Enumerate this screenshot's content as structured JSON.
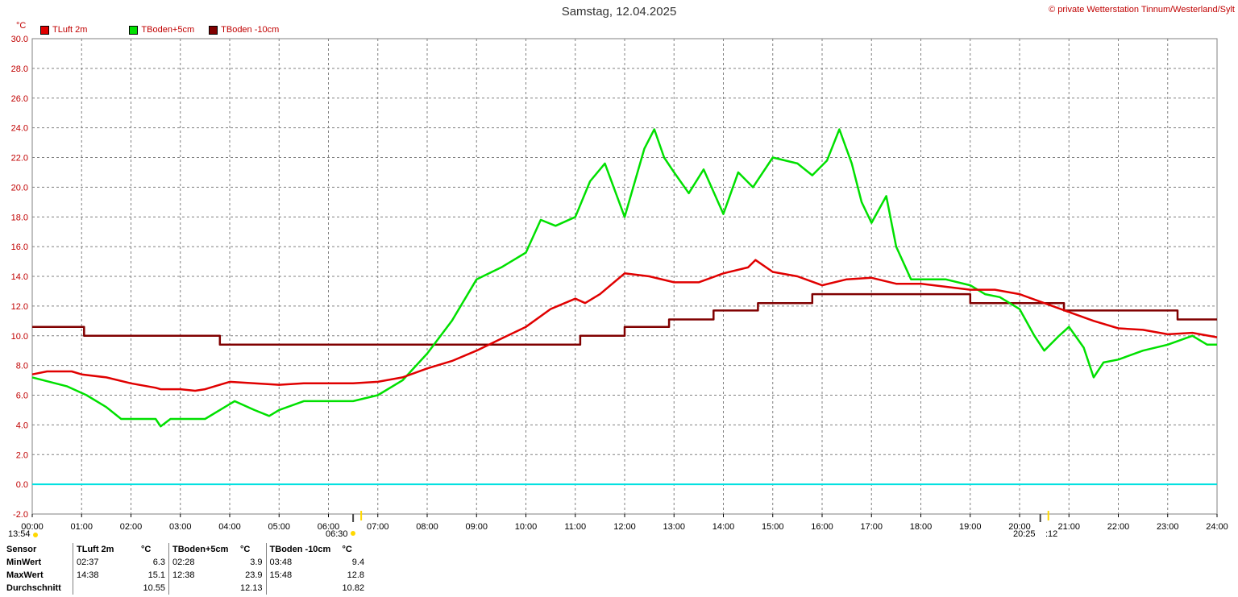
{
  "title": "Samstag, 12.04.2025",
  "copyright": "© private Wetterstation Tinnum/Westerland/Sylt",
  "unit_label": "°C",
  "sunrise_label": "06:30",
  "sunset_label": "20:25",
  "moonrise_label": "13:54",
  "moon_extra": ":12",
  "colors": {
    "tluft": "#e00000",
    "tboden5": "#00e000",
    "tboden10": "#800000",
    "zero": "#00e0e0"
  },
  "stats": {
    "headers": [
      "Sensor",
      "TLuft 2m",
      "°C",
      "TBoden+5cm",
      "°C",
      "TBoden -10cm",
      "°C"
    ],
    "rows": [
      {
        "label": "MinWert",
        "c1t": "02:37",
        "c1v": "6.3",
        "c2t": "02:28",
        "c2v": "3.9",
        "c3t": "03:48",
        "c3v": "9.4"
      },
      {
        "label": "MaxWert",
        "c1t": "14:38",
        "c1v": "15.1",
        "c2t": "12:38",
        "c2v": "23.9",
        "c3t": "15:48",
        "c3v": "12.8"
      },
      {
        "label": "Durchschnitt",
        "c1t": "",
        "c1v": "10.55",
        "c2t": "",
        "c2v": "12.13",
        "c3t": "",
        "c3v": "10.82"
      }
    ]
  },
  "chart_data": {
    "type": "line",
    "title": "Samstag, 12.04.2025",
    "xlabel": "",
    "ylabel": "°C",
    "xlim": [
      0,
      24
    ],
    "ylim": [
      -2,
      30
    ],
    "yticks": [
      "-2.0",
      "0.0",
      "2.0",
      "4.0",
      "6.0",
      "8.0",
      "10.0",
      "12.0",
      "14.0",
      "16.0",
      "18.0",
      "20.0",
      "22.0",
      "24.0",
      "26.0",
      "28.0",
      "30.0"
    ],
    "xticks": [
      "00:00",
      "01:00",
      "02:00",
      "03:00",
      "04:00",
      "05:00",
      "06:00",
      "07:00",
      "08:00",
      "09:00",
      "10:00",
      "11:00",
      "12:00",
      "13:00",
      "14:00",
      "15:00",
      "16:00",
      "17:00",
      "18:00",
      "19:00",
      "20:00",
      "21:00",
      "22:00",
      "23:00",
      "24:00"
    ],
    "grid": true,
    "legend": "top-left",
    "series": [
      {
        "name": "TLuft 2m",
        "color": "#e00000",
        "x": [
          0,
          0.3,
          0.8,
          1.0,
          1.5,
          2.0,
          2.5,
          2.6,
          3.0,
          3.3,
          3.5,
          3.8,
          4.0,
          4.5,
          5.0,
          5.5,
          6.0,
          6.5,
          7.0,
          7.5,
          8.0,
          8.5,
          9.0,
          9.5,
          10.0,
          10.5,
          11.0,
          11.2,
          11.5,
          12.0,
          12.5,
          13.0,
          13.5,
          14.0,
          14.5,
          14.65,
          15.0,
          15.5,
          16.0,
          16.5,
          17.0,
          17.5,
          18.0,
          18.5,
          19.0,
          19.5,
          20.0,
          20.5,
          21.0,
          21.5,
          22.0,
          22.5,
          23.0,
          23.5,
          24.0
        ],
        "y": [
          7.4,
          7.6,
          7.6,
          7.4,
          7.2,
          6.8,
          6.5,
          6.4,
          6.4,
          6.3,
          6.4,
          6.7,
          6.9,
          6.8,
          6.7,
          6.8,
          6.8,
          6.8,
          6.9,
          7.2,
          7.8,
          8.3,
          9.0,
          9.8,
          10.6,
          11.8,
          12.5,
          12.2,
          12.8,
          14.2,
          14.0,
          13.6,
          13.6,
          14.2,
          14.6,
          15.1,
          14.3,
          14.0,
          13.4,
          13.8,
          13.9,
          13.5,
          13.5,
          13.3,
          13.1,
          13.1,
          12.8,
          12.2,
          11.6,
          11.0,
          10.5,
          10.4,
          10.1,
          10.2,
          9.9
        ]
      },
      {
        "name": "TBoden+5cm",
        "color": "#00e000",
        "x": [
          0,
          0.7,
          1.1,
          1.5,
          1.8,
          2.5,
          2.6,
          2.8,
          3.5,
          3.8,
          4.1,
          4.5,
          4.8,
          5.0,
          5.5,
          6.0,
          6.5,
          7.0,
          7.5,
          8.0,
          8.5,
          9.0,
          9.5,
          10.0,
          10.3,
          10.6,
          11.0,
          11.3,
          11.6,
          12.0,
          12.4,
          12.6,
          12.8,
          13.0,
          13.3,
          13.6,
          14.0,
          14.3,
          14.6,
          15.0,
          15.5,
          15.8,
          16.1,
          16.35,
          16.6,
          16.8,
          17.0,
          17.3,
          17.5,
          17.8,
          18.0,
          18.5,
          19.0,
          19.3,
          19.6,
          20.0,
          20.3,
          20.5,
          20.8,
          21.0,
          21.3,
          21.5,
          21.7,
          22.0,
          22.5,
          23.0,
          23.5,
          23.8,
          24.0
        ],
        "y": [
          7.2,
          6.6,
          6.0,
          5.2,
          4.4,
          4.4,
          3.9,
          4.4,
          4.4,
          5.0,
          5.6,
          5.0,
          4.6,
          5.0,
          5.6,
          5.6,
          5.6,
          6.0,
          7.0,
          8.8,
          11.0,
          13.8,
          14.6,
          15.6,
          17.8,
          17.4,
          18.0,
          20.4,
          21.6,
          18.0,
          22.6,
          23.9,
          22.0,
          21.0,
          19.6,
          21.2,
          18.2,
          21.0,
          20.0,
          22.0,
          21.6,
          20.8,
          21.8,
          23.9,
          21.6,
          19.0,
          17.6,
          19.4,
          16.0,
          13.8,
          13.8,
          13.8,
          13.4,
          12.8,
          12.6,
          11.8,
          10.0,
          9.0,
          10.0,
          10.6,
          9.2,
          7.2,
          8.2,
          8.4,
          9.0,
          9.4,
          10.0,
          9.4,
          9.4
        ]
      },
      {
        "name": "TBoden -10cm",
        "color": "#800000",
        "x": [
          0,
          1.05,
          1.05,
          3.8,
          3.8,
          6.8,
          6.8,
          11.1,
          11.1,
          12.0,
          12.0,
          12.9,
          12.9,
          13.8,
          13.8,
          14.7,
          14.7,
          15.8,
          15.8,
          16.8,
          16.8,
          17.9,
          17.9,
          19.0,
          19.0,
          19.05,
          19.05,
          20.9,
          20.9,
          23.2,
          23.2,
          24.0
        ],
        "y": [
          10.6,
          10.6,
          10.0,
          10.0,
          9.4,
          9.4,
          9.4,
          9.4,
          10.0,
          10.0,
          10.6,
          10.6,
          11.1,
          11.1,
          11.7,
          11.7,
          12.2,
          12.2,
          12.8,
          12.8,
          12.8,
          12.8,
          12.8,
          12.8,
          12.2,
          12.2,
          12.2,
          12.2,
          11.7,
          11.7,
          11.1,
          11.1
        ]
      }
    ]
  }
}
